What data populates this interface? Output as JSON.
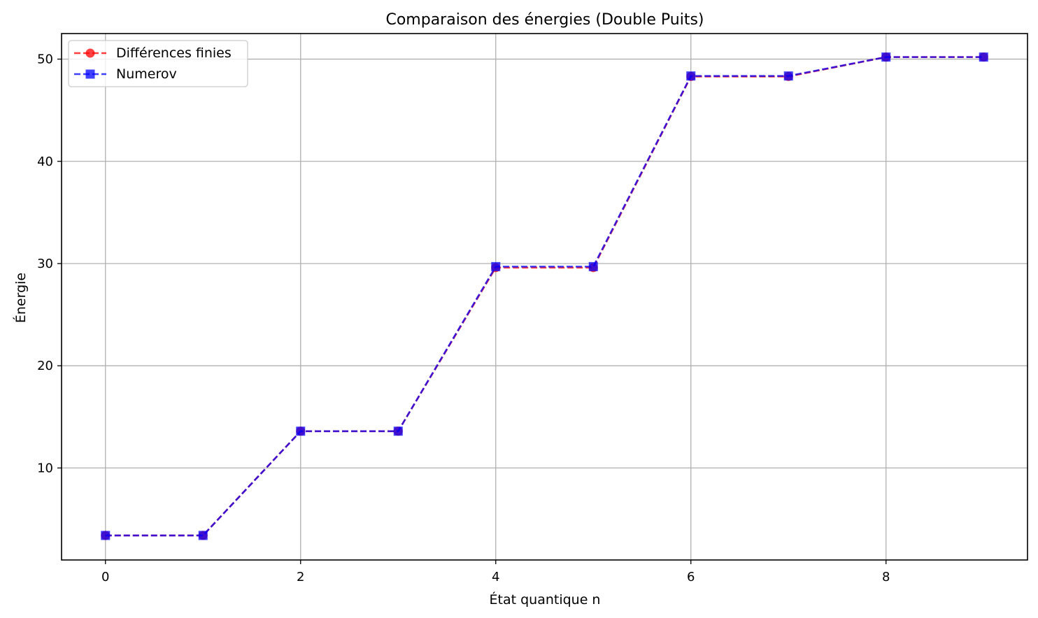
{
  "chart_data": {
    "type": "line",
    "title": "Comparaison des énergies (Double Puits)",
    "xlabel": "État quantique n",
    "ylabel": "Énergie",
    "xlim": [
      -0.45,
      9.45
    ],
    "ylim": [
      1.0,
      52.5
    ],
    "xticks": [
      0,
      2,
      4,
      6,
      8
    ],
    "yticks": [
      10,
      20,
      30,
      40,
      50
    ],
    "grid": true,
    "legend_position": "upper-left",
    "x": [
      0,
      1,
      2,
      3,
      4,
      5,
      6,
      7,
      8,
      9
    ],
    "series": [
      {
        "name": "Différences finies",
        "values": [
          3.4,
          3.4,
          13.6,
          13.6,
          29.6,
          29.6,
          48.3,
          48.3,
          50.2,
          50.2
        ],
        "color": "#ff0000",
        "marker": "circle",
        "line_style": "dashed"
      },
      {
        "name": "Numerov",
        "values": [
          3.4,
          3.4,
          13.6,
          13.6,
          29.7,
          29.7,
          48.35,
          48.35,
          50.2,
          50.2
        ],
        "color": "#0000ff",
        "marker": "square",
        "line_style": "dashed"
      }
    ]
  }
}
